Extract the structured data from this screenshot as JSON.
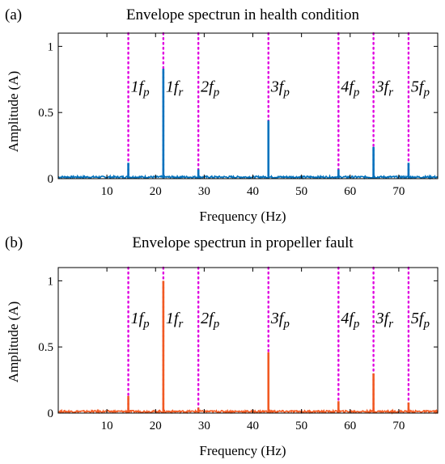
{
  "figure": {
    "panels": [
      {
        "label": "(a)",
        "title": "Envelope spectrun in health condition",
        "line_color": "#0072BD"
      },
      {
        "label": "(b)",
        "title": "Envelope spectrun in propeller fault",
        "line_color": "#F15A22"
      }
    ],
    "marker_color": "#E000E0"
  },
  "chart_data": [
    {
      "type": "line",
      "title": "Envelope spectrun in health condition",
      "xlabel": "Frequency (Hz)",
      "ylabel": "Amplitude (A)",
      "xlim": [
        0,
        78
      ],
      "ylim": [
        0,
        1.1
      ],
      "x_ticks": [
        10,
        20,
        30,
        40,
        50,
        60,
        70
      ],
      "y_ticks": [
        0,
        0.5,
        1
      ],
      "y_tick_labels": [
        "0",
        "0.5",
        "1"
      ],
      "series": [
        {
          "color": "#0072BD",
          "noise_floor": 0.015,
          "peaks": [
            {
              "x": 14.4,
              "y": 0.12
            },
            {
              "x": 21.6,
              "y": 0.83
            },
            {
              "x": 28.8,
              "y": 0.07
            },
            {
              "x": 43.2,
              "y": 0.44
            },
            {
              "x": 57.6,
              "y": 0.07
            },
            {
              "x": 64.8,
              "y": 0.24
            },
            {
              "x": 72.0,
              "y": 0.12
            }
          ]
        }
      ],
      "markers": [
        {
          "x": 14.4,
          "label": "1",
          "sub": "p"
        },
        {
          "x": 21.6,
          "label": "1",
          "sub": "r"
        },
        {
          "x": 28.8,
          "label": "2",
          "sub": "p"
        },
        {
          "x": 43.2,
          "label": "3",
          "sub": "p"
        },
        {
          "x": 57.6,
          "label": "4",
          "sub": "p"
        },
        {
          "x": 64.8,
          "label": "3",
          "sub": "r"
        },
        {
          "x": 72.0,
          "label": "5",
          "sub": "p"
        }
      ]
    },
    {
      "type": "line",
      "title": "Envelope spectrun in propeller fault",
      "xlabel": "Frequency (Hz)",
      "ylabel": "Amplitude (A)",
      "xlim": [
        0,
        78
      ],
      "ylim": [
        0,
        1.1
      ],
      "x_ticks": [
        10,
        20,
        30,
        40,
        50,
        60,
        70
      ],
      "y_ticks": [
        0,
        0.5,
        1
      ],
      "y_tick_labels": [
        "0",
        "0.5",
        "1"
      ],
      "series": [
        {
          "color": "#F15A22",
          "noise_floor": 0.015,
          "peaks": [
            {
              "x": 14.4,
              "y": 0.13
            },
            {
              "x": 21.6,
              "y": 1.0
            },
            {
              "x": 28.8,
              "y": 0.04
            },
            {
              "x": 43.2,
              "y": 0.46
            },
            {
              "x": 57.6,
              "y": 0.09
            },
            {
              "x": 64.8,
              "y": 0.3
            },
            {
              "x": 72.0,
              "y": 0.08
            }
          ]
        }
      ],
      "markers": [
        {
          "x": 14.4,
          "label": "1",
          "sub": "p"
        },
        {
          "x": 21.6,
          "label": "1",
          "sub": "r"
        },
        {
          "x": 28.8,
          "label": "2",
          "sub": "p"
        },
        {
          "x": 43.2,
          "label": "3",
          "sub": "p"
        },
        {
          "x": 57.6,
          "label": "4",
          "sub": "p"
        },
        {
          "x": 64.8,
          "label": "3",
          "sub": "r"
        },
        {
          "x": 72.0,
          "label": "5",
          "sub": "p"
        }
      ]
    }
  ]
}
